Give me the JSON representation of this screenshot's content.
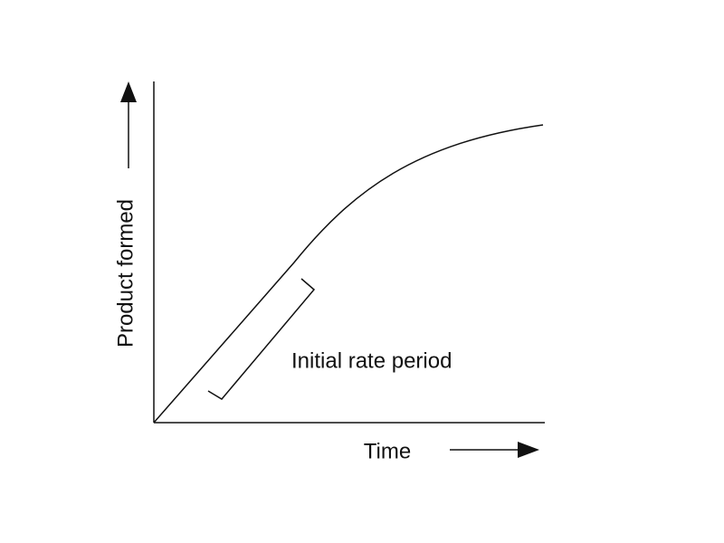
{
  "diagram": {
    "y_axis_label": "Product formed",
    "x_axis_label": "Time",
    "annotation": "Initial rate period"
  }
}
